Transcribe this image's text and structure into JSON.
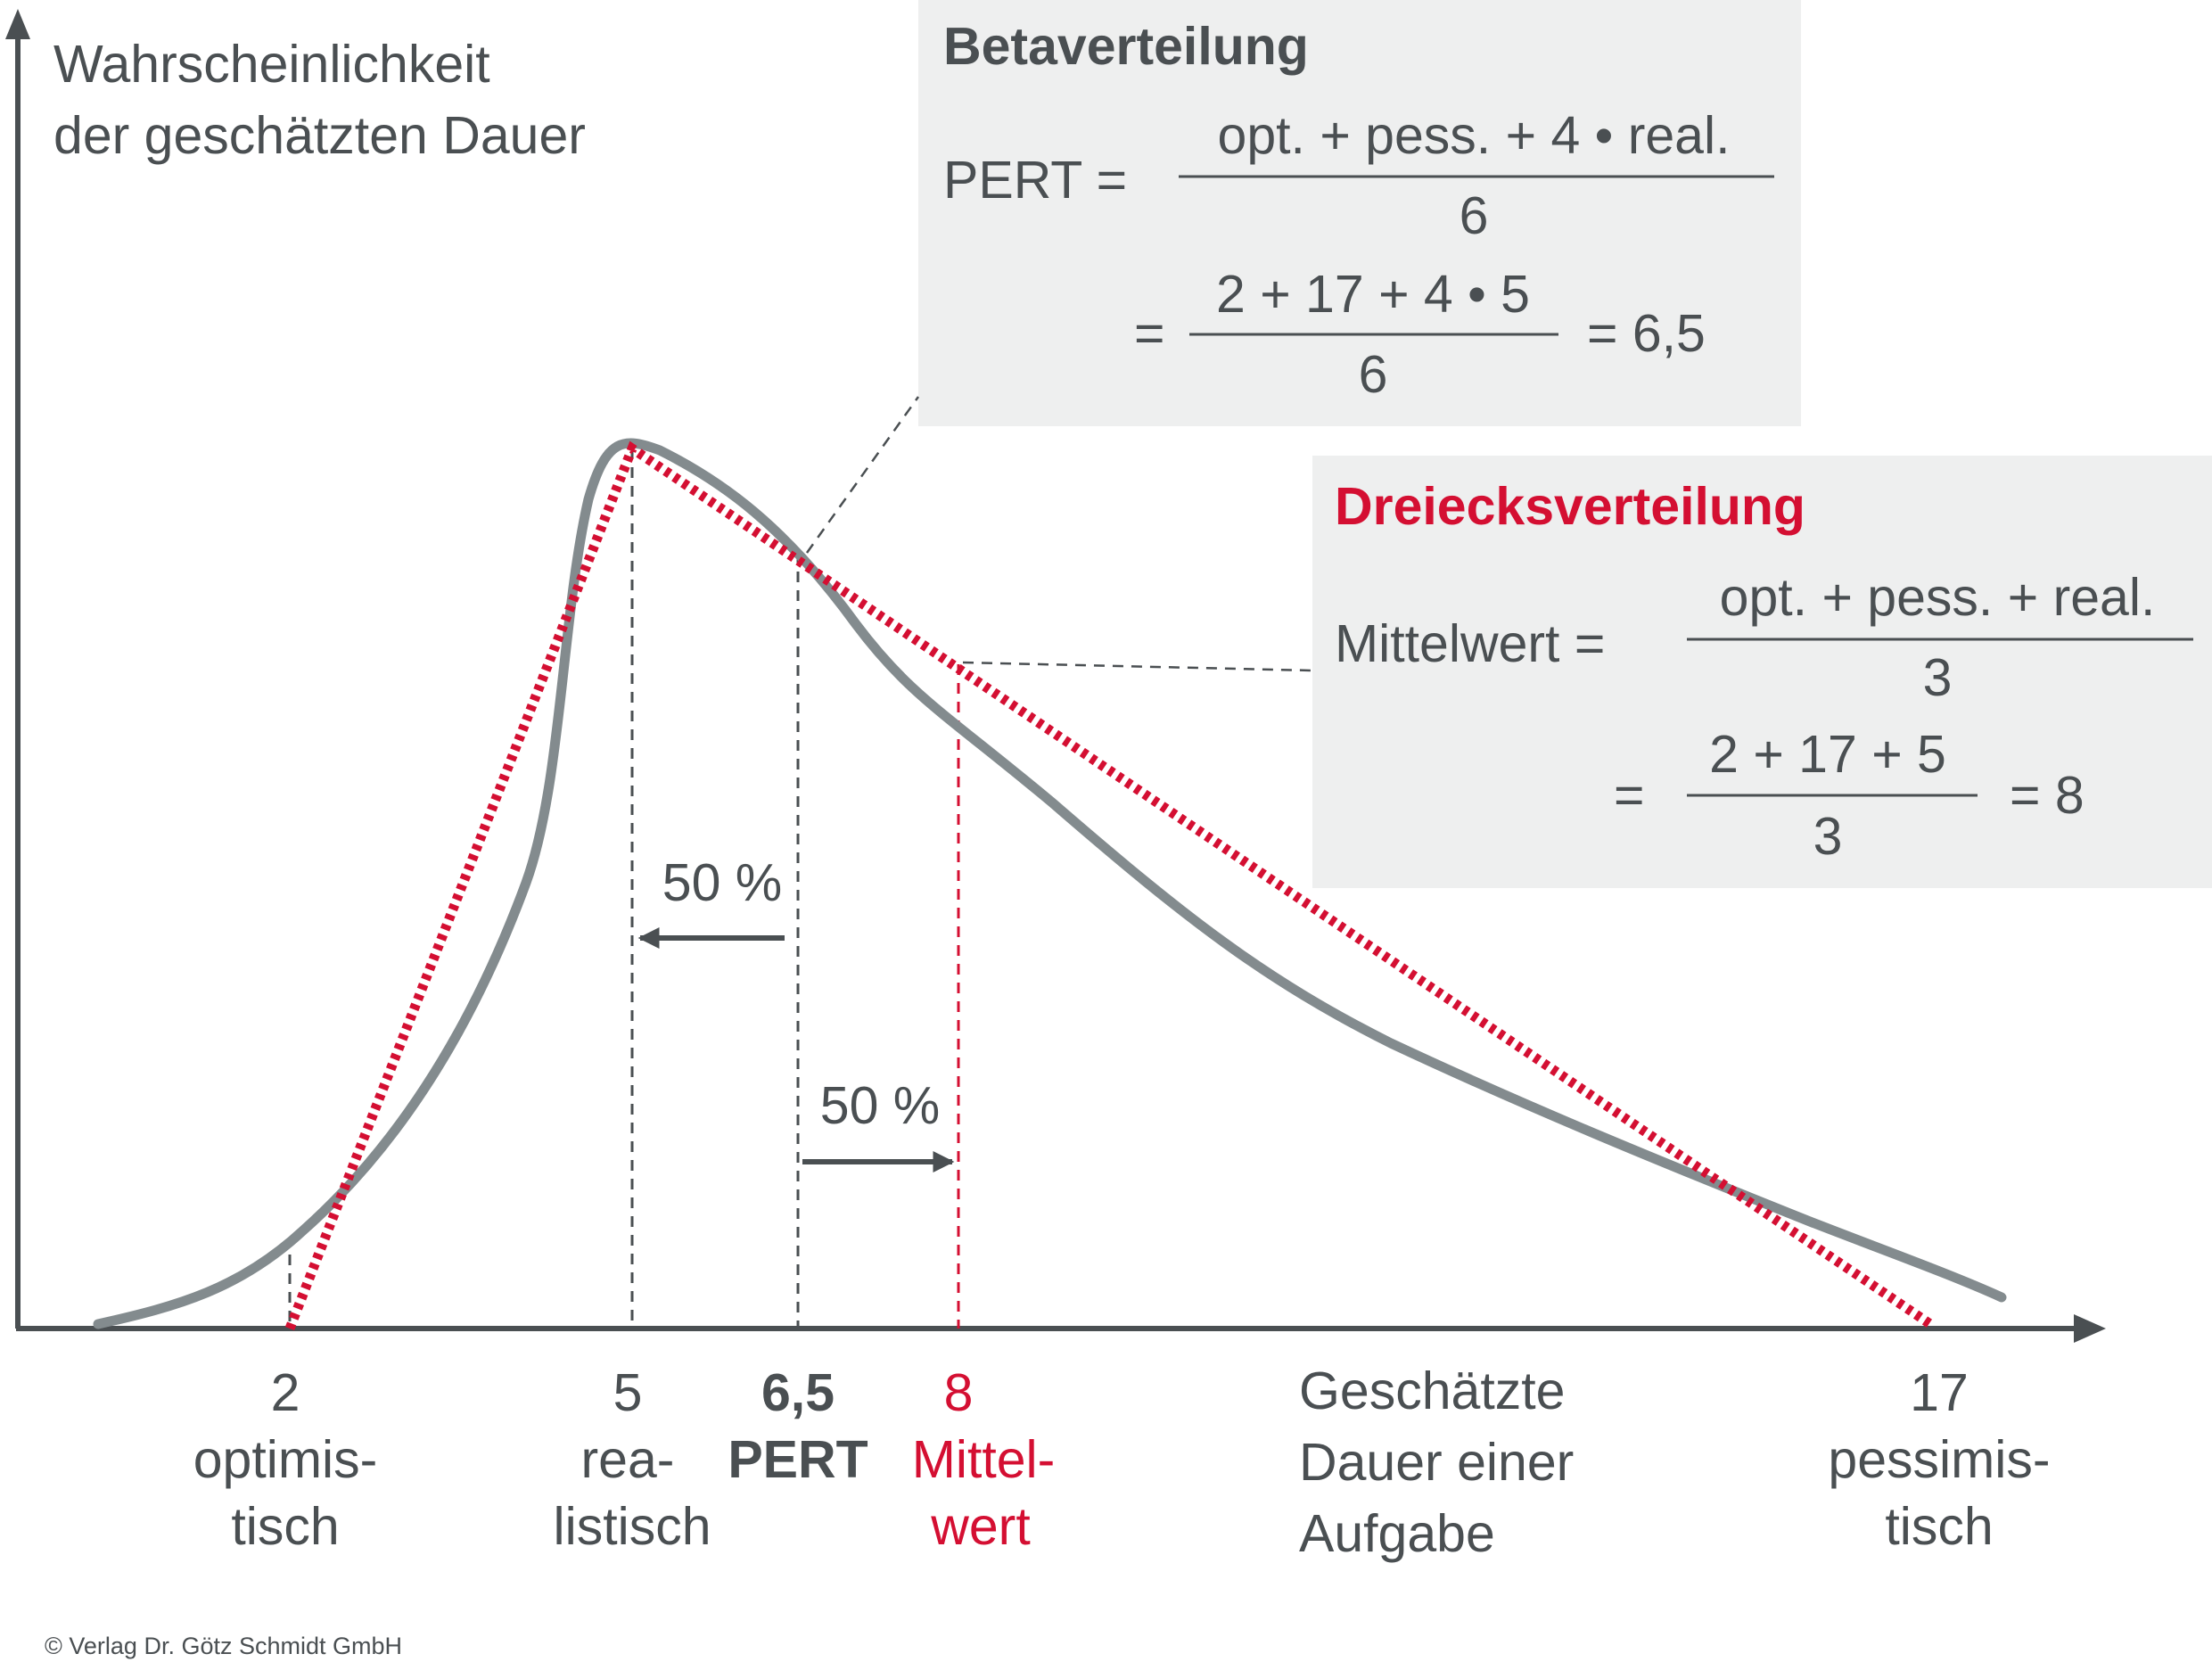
{
  "y_axis_label": [
    "Wahrscheinlichkeit",
    "der geschätzten Dauer"
  ],
  "x_axis_label": [
    "Geschätzte",
    "Dauer einer",
    "Aufgabe"
  ],
  "ticks": {
    "opt": [
      "2",
      "optimis-",
      "tisch"
    ],
    "real": [
      "5",
      "rea-",
      "listisch"
    ],
    "pert": [
      "6,5",
      "PERT"
    ],
    "mean": [
      "8",
      "Mittel-",
      "wert"
    ],
    "pess": [
      "17",
      "pessimis-",
      "tisch"
    ]
  },
  "half_labels": [
    "50 %",
    "50 %"
  ],
  "beta_box": {
    "title": "Betaverteilung",
    "lhs": "PERT =",
    "num1": "opt. + pess. + 4 • real.",
    "den1": "6",
    "eq2": "=",
    "num2": "2 + 17 + 4 • 5",
    "den2": "6",
    "result": "=  6,5"
  },
  "tri_box": {
    "title": "Dreiecksverteilung",
    "lhs": "Mittelwert =",
    "num1": "opt. + pess. + real.",
    "den1": "3",
    "eq2": "=",
    "num2": "2 + 17 + 5",
    "den2": "3",
    "result": "=  8"
  },
  "copyright": "© Verlag Dr. Götz Schmidt GmbH",
  "colors": {
    "axis": "#4a4f52",
    "beta_curve": "#838b8e",
    "triangle": "#d40f32",
    "box_bg": "#eeefef"
  }
}
